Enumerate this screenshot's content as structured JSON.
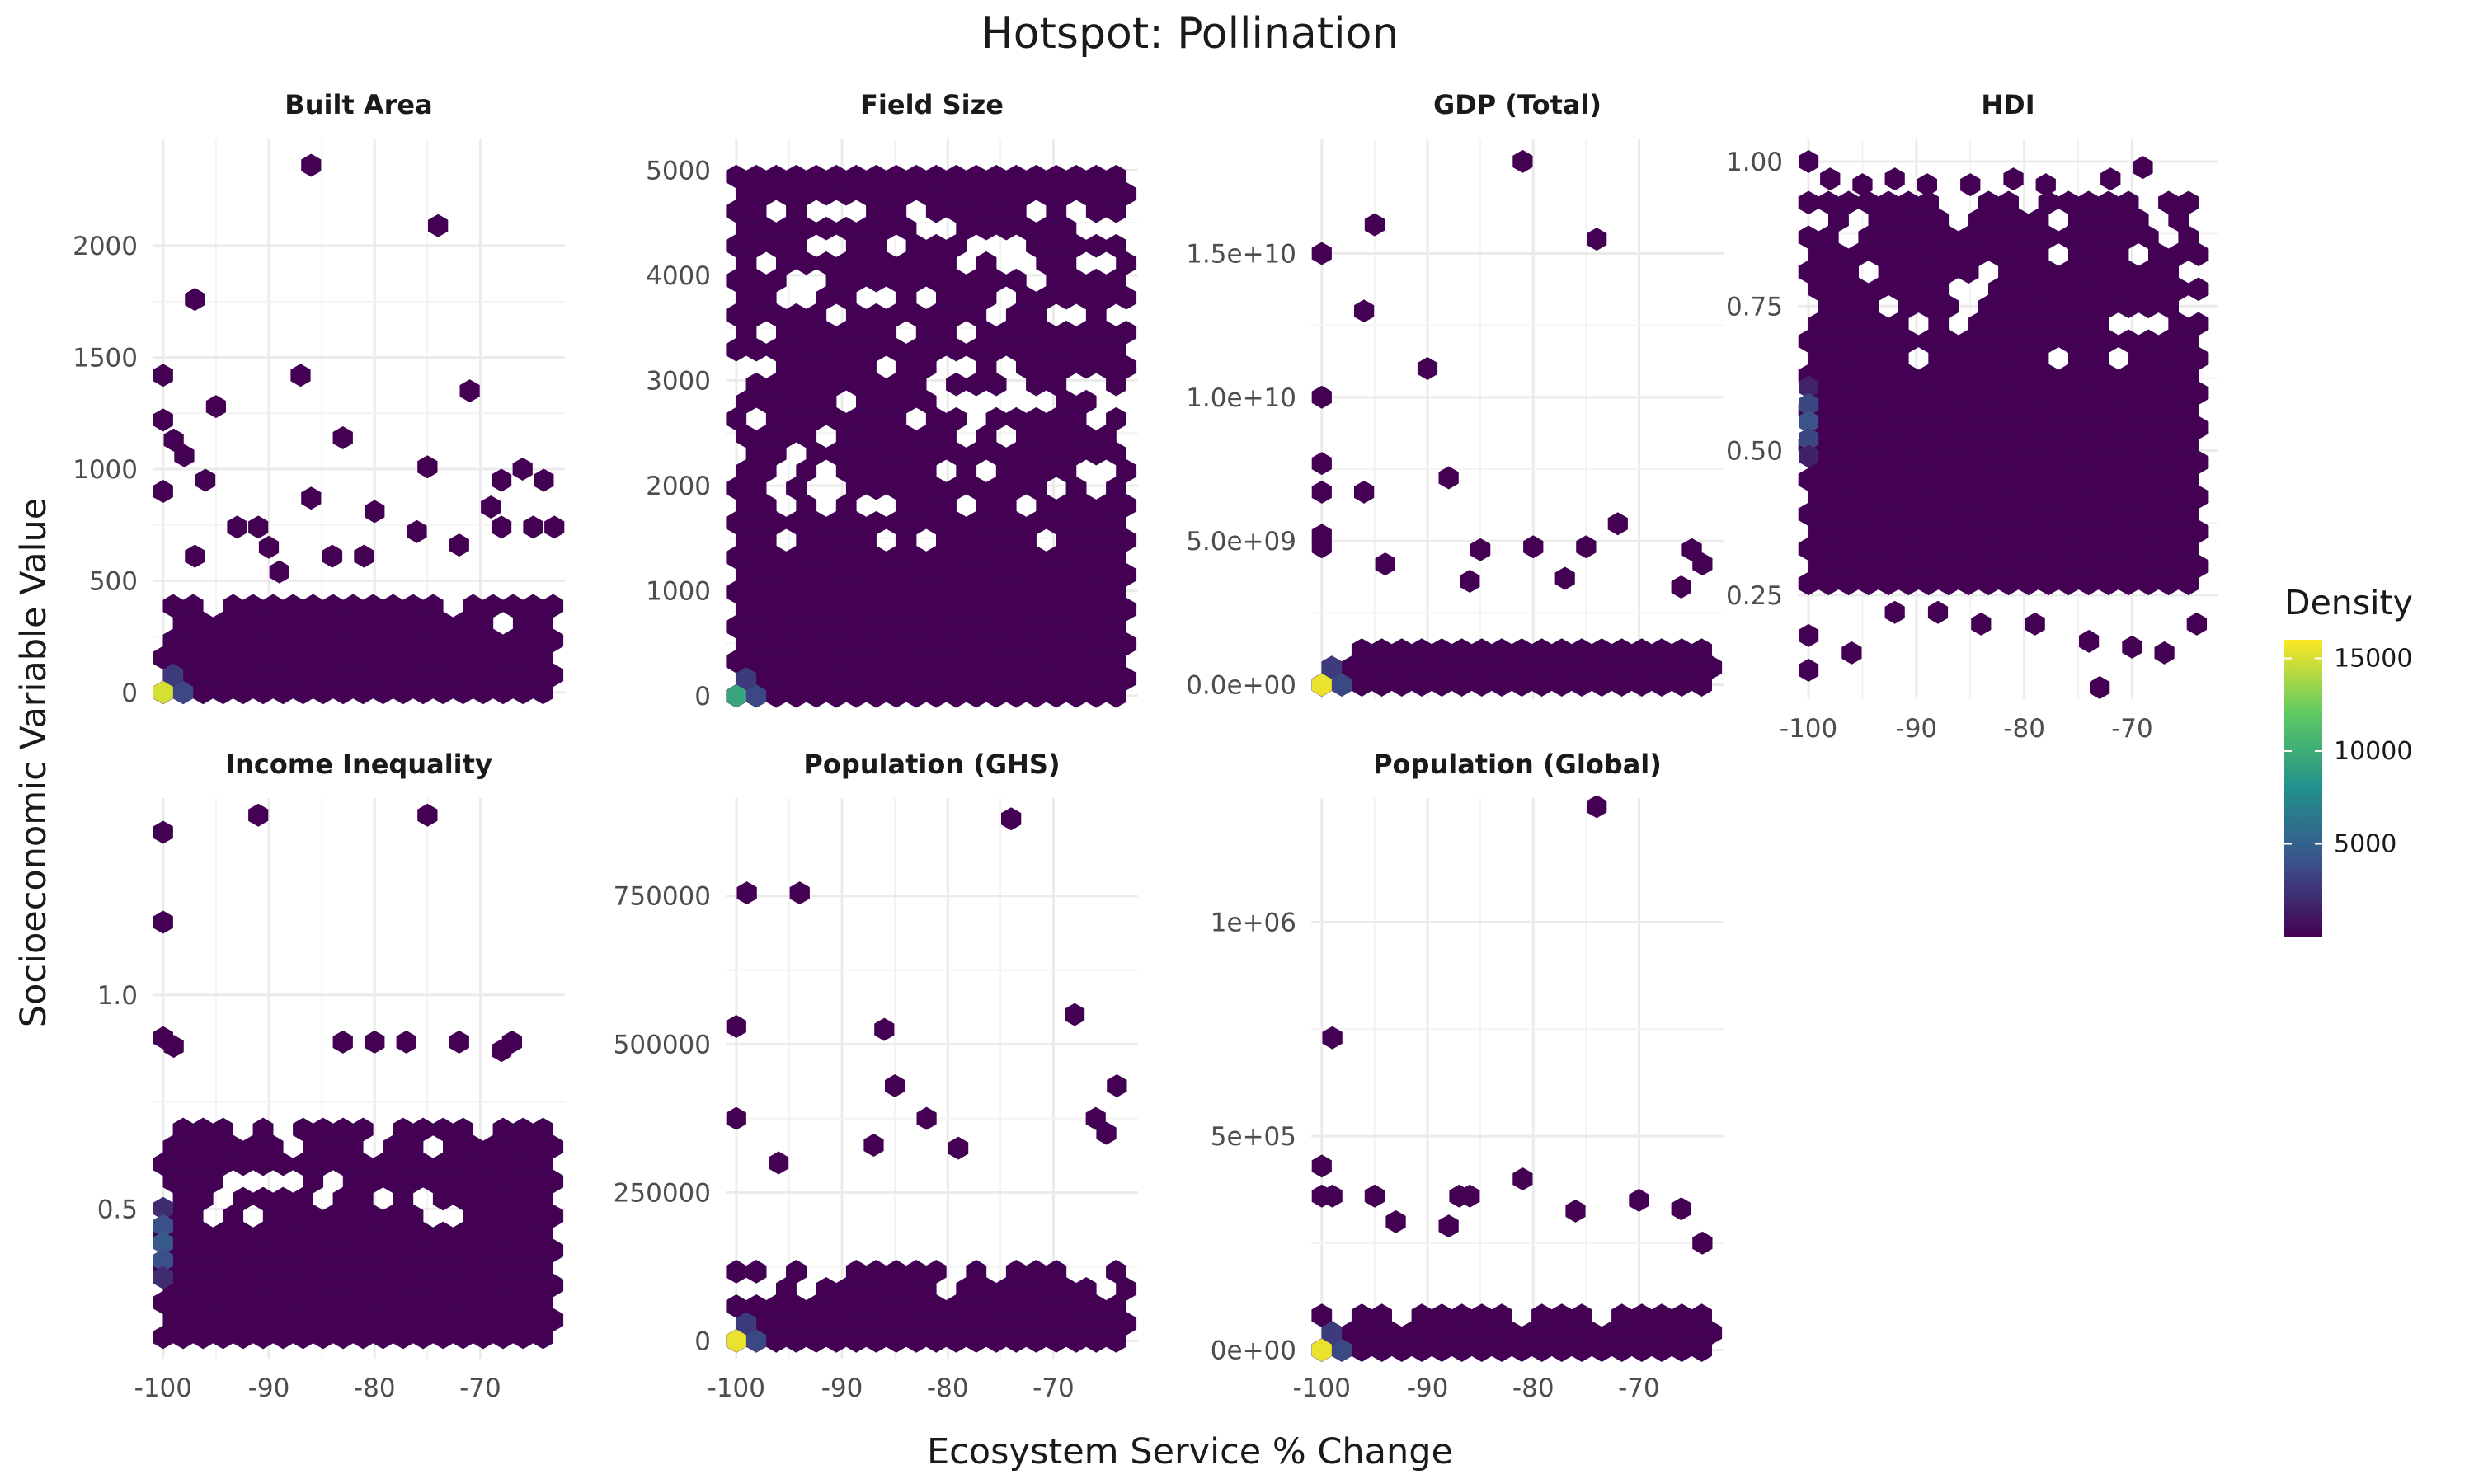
{
  "chart_data": {
    "type": "hexbin",
    "title": "Hotspot: Pollination",
    "xlabel": "Ecosystem Service % Change",
    "ylabel": "Socioeconomic Variable Value",
    "grid": true,
    "legend": {
      "title": "Density",
      "position": "right",
      "ticks": [
        "5000",
        "10000",
        "15000"
      ],
      "range": [
        0,
        16000
      ],
      "colormap": "viridis"
    },
    "colors": {
      "low": "#440154",
      "mid": "#21908C",
      "high": "#FDE725",
      "grid": "#EBEBEB"
    },
    "x_range": [
      -101,
      -62
    ],
    "x_ticks": [
      -100,
      -90,
      -80,
      -70
    ],
    "x_tick_labels": [
      "-100",
      "-90",
      "-80",
      "-70"
    ],
    "facets": [
      {
        "name": "Built Area",
        "ylim": [
          -30,
          2480
        ],
        "y_ticks": [
          0,
          500,
          1000,
          1500,
          2000
        ],
        "y_tick_labels": [
          "0",
          "500",
          "1000",
          "1500",
          "2000"
        ],
        "show_x_labels": false,
        "dense_band": {
          "x": [
            -100,
            -63
          ],
          "y": [
            0,
            430
          ]
        },
        "hotspot": {
          "x": -100,
          "y": 0,
          "density": 15000
        },
        "outliers": [
          [
            -86,
            2360
          ],
          [
            -74,
            2090
          ],
          [
            -97,
            1760
          ],
          [
            -100,
            1420
          ],
          [
            -87,
            1420
          ],
          [
            -71,
            1350
          ],
          [
            -95,
            1280
          ],
          [
            -83,
            1140
          ],
          [
            -100,
            1220
          ],
          [
            -99,
            1130
          ],
          [
            -98,
            1060
          ],
          [
            -75,
            1010
          ],
          [
            -100,
            900
          ],
          [
            -96,
            950
          ],
          [
            -68,
            950
          ],
          [
            -66,
            1000
          ],
          [
            -69,
            830
          ],
          [
            -64,
            950
          ],
          [
            -80,
            810
          ],
          [
            -76,
            720
          ],
          [
            -86,
            870
          ],
          [
            -91,
            740
          ],
          [
            -93,
            740
          ],
          [
            -90,
            650
          ],
          [
            -84,
            610
          ],
          [
            -81,
            610
          ],
          [
            -72,
            660
          ],
          [
            -68,
            740
          ],
          [
            -65,
            740
          ],
          [
            -63,
            740
          ],
          [
            -97,
            610
          ],
          [
            -89,
            540
          ]
        ]
      },
      {
        "name": "Field Size",
        "ylim": [
          -30,
          5300
        ],
        "y_ticks": [
          0,
          1000,
          2000,
          3000,
          4000,
          5000
        ],
        "y_tick_labels": [
          "0",
          "1000",
          "2000",
          "3000",
          "4000",
          "5000"
        ],
        "show_x_labels": false,
        "dense_band": {
          "x": [
            -100,
            -63
          ],
          "y": [
            0,
            5050
          ]
        },
        "sparse_mid": true,
        "hotspot": {
          "x": -100,
          "y": 0,
          "density": 9500
        },
        "outliers": []
      },
      {
        "name": "GDP (Total)",
        "ylim": [
          -500000000,
          19000000000
        ],
        "y_ticks": [
          0,
          5000000000,
          10000000000,
          15000000000
        ],
        "y_tick_labels": [
          "0.0e+00",
          "5.0e+09",
          "1.0e+10",
          "1.5e+10"
        ],
        "show_x_labels": false,
        "dense_band": {
          "x": [
            -100,
            -63
          ],
          "y": [
            0,
            1500000000
          ]
        },
        "hotspot": {
          "x": -100,
          "y": 0,
          "density": 15500
        },
        "outliers": [
          [
            -81,
            18200000000
          ],
          [
            -74,
            15500000000
          ],
          [
            -100,
            15000000000
          ],
          [
            -95,
            16000000000
          ],
          [
            -96,
            13000000000
          ],
          [
            -90,
            11000000000
          ],
          [
            -100,
            10000000000
          ],
          [
            -100,
            7700000000
          ],
          [
            -96,
            6700000000
          ],
          [
            -88,
            7200000000
          ],
          [
            -100,
            6700000000
          ],
          [
            -100,
            5200000000
          ],
          [
            -100,
            4800000000
          ],
          [
            -94,
            4200000000
          ],
          [
            -85,
            4700000000
          ],
          [
            -80,
            4800000000
          ],
          [
            -75,
            4800000000
          ],
          [
            -72,
            5600000000
          ],
          [
            -65,
            4700000000
          ],
          [
            -64,
            4200000000
          ],
          [
            -86,
            3600000000
          ],
          [
            -77,
            3700000000
          ],
          [
            -66,
            3400000000
          ]
        ]
      },
      {
        "name": "HDI",
        "ylim": [
          0.07,
          1.04
        ],
        "y_ticks": [
          0.25,
          0.5,
          0.75,
          1.0
        ],
        "y_tick_labels": [
          "0.25",
          "0.50",
          "0.75",
          "1.00"
        ],
        "show_x_labels": true,
        "dense_band": {
          "x": [
            -100,
            -63
          ],
          "y": [
            0.27,
            0.94
          ]
        },
        "hotspot": {
          "x": -100,
          "y": 0.55,
          "density": 4000
        },
        "outliers": [
          [
            -100,
            1.0
          ],
          [
            -98,
            0.97
          ],
          [
            -95,
            0.96
          ],
          [
            -92,
            0.97
          ],
          [
            -89,
            0.96
          ],
          [
            -85,
            0.96
          ],
          [
            -81,
            0.97
          ],
          [
            -78,
            0.96
          ],
          [
            -72,
            0.97
          ],
          [
            -69,
            0.99
          ],
          [
            -100,
            0.12
          ],
          [
            -96,
            0.15
          ],
          [
            -100,
            0.18
          ],
          [
            -84,
            0.2
          ],
          [
            -79,
            0.2
          ],
          [
            -74,
            0.17
          ],
          [
            -73,
            0.09
          ],
          [
            -70,
            0.16
          ],
          [
            -67,
            0.15
          ],
          [
            -64,
            0.2
          ],
          [
            -92,
            0.22
          ],
          [
            -88,
            0.22
          ]
        ]
      },
      {
        "name": "Income Inequality",
        "ylim": [
          0.15,
          1.46
        ],
        "y_ticks": [
          0.5,
          1.0
        ],
        "y_tick_labels": [
          "0.5",
          "1.0"
        ],
        "show_x_labels": true,
        "dense_band": {
          "x": [
            -100,
            -63
          ],
          "y": [
            0.2,
            0.69
          ]
        },
        "hotspot": {
          "x": -100,
          "y": 0.42,
          "density": 4500
        },
        "outliers": [
          [
            -100,
            1.38
          ],
          [
            -91,
            1.42
          ],
          [
            -75,
            1.42
          ],
          [
            -100,
            1.17
          ],
          [
            -100,
            0.9
          ],
          [
            -99,
            0.88
          ],
          [
            -83,
            0.89
          ],
          [
            -80,
            0.89
          ],
          [
            -77,
            0.89
          ],
          [
            -72,
            0.89
          ],
          [
            -67,
            0.89
          ],
          [
            -68,
            0.87
          ]
        ]
      },
      {
        "name": "Population (GHS)",
        "ylim": [
          -30000,
          915000
        ],
        "y_ticks": [
          0,
          250000,
          500000,
          750000
        ],
        "y_tick_labels": [
          "0",
          "250000",
          "500000",
          "750000"
        ],
        "show_x_labels": true,
        "dense_band": {
          "x": [
            -100,
            -63
          ],
          "y": [
            0,
            130000
          ]
        },
        "hotspot": {
          "x": -100,
          "y": 0,
          "density": 15500
        },
        "outliers": [
          [
            -74,
            880000
          ],
          [
            -99,
            755000
          ],
          [
            -94,
            755000
          ],
          [
            -100,
            530000
          ],
          [
            -86,
            525000
          ],
          [
            -68,
            550000
          ],
          [
            -85,
            430000
          ],
          [
            -64,
            430000
          ],
          [
            -100,
            375000
          ],
          [
            -82,
            375000
          ],
          [
            -66,
            375000
          ],
          [
            -96,
            300000
          ],
          [
            -87,
            330000
          ],
          [
            -79,
            325000
          ],
          [
            -65,
            350000
          ]
        ]
      },
      {
        "name": "Population (Global)",
        "ylim": [
          -20000,
          1290000
        ],
        "y_ticks": [
          0,
          500000,
          1000000
        ],
        "y_tick_labels": [
          "0e+00",
          "5e+05",
          "1e+06"
        ],
        "show_x_labels": true,
        "dense_band": {
          "x": [
            -100,
            -63
          ],
          "y": [
            0,
            110000
          ]
        },
        "hotspot": {
          "x": -100,
          "y": 0,
          "density": 15500
        },
        "outliers": [
          [
            -74,
            1270000
          ],
          [
            -99,
            730000
          ],
          [
            -100,
            430000
          ],
          [
            -100,
            360000
          ],
          [
            -99,
            360000
          ],
          [
            -95,
            360000
          ],
          [
            -87,
            360000
          ],
          [
            -86,
            360000
          ],
          [
            -81,
            400000
          ],
          [
            -76,
            325000
          ],
          [
            -70,
            350000
          ],
          [
            -66,
            330000
          ],
          [
            -64,
            250000
          ],
          [
            -93,
            300000
          ],
          [
            -88,
            290000
          ]
        ]
      }
    ]
  }
}
